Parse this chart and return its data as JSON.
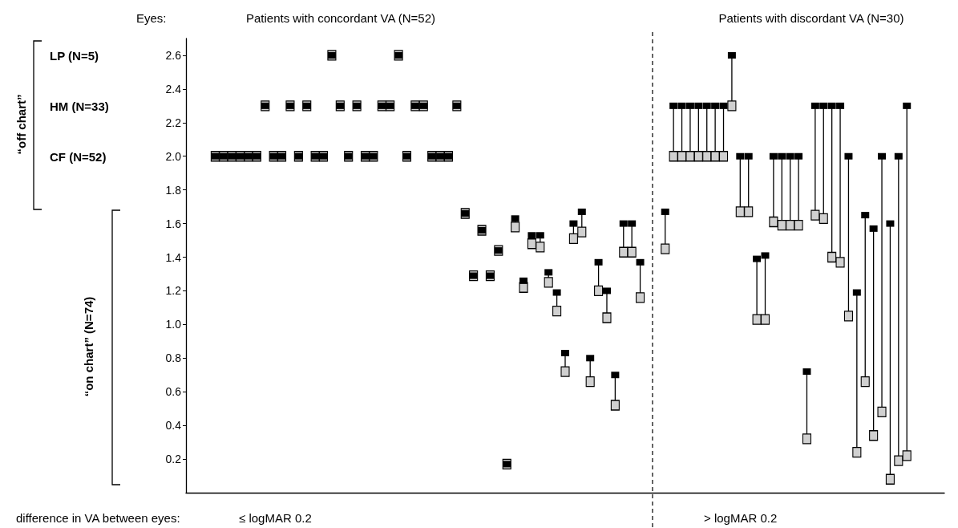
{
  "chart_data": {
    "type": "scatter",
    "marker": "square",
    "grid": false,
    "categories": [
      null,
      null,
      null,
      null,
      null,
      null,
      null,
      null,
      null,
      null,
      null,
      null,
      null,
      null,
      null,
      null,
      null,
      null,
      null,
      null,
      null,
      null,
      null,
      null,
      null,
      null,
      null,
      null,
      null,
      null,
      null,
      null,
      null,
      null,
      null,
      null,
      null,
      null,
      null,
      null,
      null,
      null,
      null,
      null,
      null,
      null,
      null,
      null,
      null,
      null,
      null,
      null,
      null,
      null,
      null,
      null,
      null,
      null,
      null,
      null,
      null,
      null,
      null,
      null,
      null,
      null,
      null,
      null,
      null,
      null,
      null,
      null,
      null,
      null,
      null,
      null,
      null,
      null,
      null,
      null,
      null,
      null,
      null,
      null,
      null,
      null,
      null,
      null,
      null,
      null,
      null
    ],
    "series": [
      {
        "color": "#d0d0d0",
        "values": [
          null,
          null,
          null,
          2.0,
          2.0,
          2.0,
          2.0,
          2.0,
          2.0,
          2.3,
          2.0,
          2.0,
          2.3,
          2.0,
          2.3,
          2.0,
          2.0,
          2.6,
          2.3,
          2.0,
          2.3,
          2.0,
          2.0,
          2.3,
          2.3,
          2.6,
          2.0,
          2.3,
          2.3,
          2.0,
          2.0,
          2.0,
          2.3,
          1.66,
          1.29,
          1.56,
          1.29,
          1.44,
          0.17,
          1.58,
          1.22,
          1.48,
          1.46,
          1.25,
          1.08,
          0.72,
          1.51,
          1.55,
          0.66,
          1.2,
          1.04,
          0.52,
          1.43,
          1.43,
          1.16,
          null,
          null,
          1.45,
          2.0,
          2.0,
          2.0,
          2.0,
          2.0,
          2.0,
          2.0,
          2.3,
          1.67,
          1.67,
          1.03,
          1.03,
          1.61,
          1.59,
          1.59,
          1.59,
          0.32,
          1.65,
          1.63,
          1.4,
          1.37,
          1.05,
          0.24,
          0.66,
          0.34,
          0.48,
          0.08,
          0.19,
          0.22,
          null,
          null,
          null,
          null
        ]
      },
      {
        "color": "#000000",
        "values": [
          null,
          null,
          null,
          2.0,
          2.0,
          2.0,
          2.0,
          2.0,
          2.0,
          2.3,
          2.0,
          2.0,
          2.3,
          2.0,
          2.3,
          2.0,
          2.0,
          2.6,
          2.3,
          2.0,
          2.3,
          2.0,
          2.0,
          2.3,
          2.3,
          2.6,
          2.0,
          2.3,
          2.3,
          2.0,
          2.0,
          2.0,
          2.3,
          1.66,
          1.29,
          1.56,
          1.29,
          1.44,
          0.17,
          1.63,
          1.26,
          1.53,
          1.53,
          1.31,
          1.19,
          0.83,
          1.6,
          1.67,
          0.8,
          1.37,
          1.2,
          0.7,
          1.6,
          1.6,
          1.37,
          null,
          null,
          1.67,
          2.3,
          2.3,
          2.3,
          2.3,
          2.3,
          2.3,
          2.3,
          2.6,
          2.0,
          2.0,
          1.39,
          1.41,
          2.0,
          2.0,
          2.0,
          2.0,
          0.72,
          2.3,
          2.3,
          2.3,
          2.3,
          2.0,
          1.19,
          1.65,
          1.57,
          2.0,
          1.6,
          2.0,
          2.3,
          null,
          null,
          null,
          null
        ]
      }
    ],
    "ylim": [
      0,
      2.7
    ],
    "yticks": [
      0.2,
      0.4,
      0.6,
      0.8,
      {
        "value": 1.0,
        "label": "1.0"
      },
      1.2,
      1.4,
      1.6,
      1.8,
      {
        "value": 2.0,
        "label": "2.0"
      },
      2.2,
      2.4,
      2.6
    ],
    "tick_labels": "y",
    "annotations": [
      "Eyes:",
      "Patients with concordant VA (N=52)",
      "Patients with discordant VA (N=30)",
      "LP (N=5)",
      "HM (N=33)",
      "CF (N=52)",
      "“off chart”",
      "“on chart” (N=74)",
      "difference in VA between eyes:",
      "≤ logMAR 0.2",
      "> logMAR 0.2"
    ]
  }
}
